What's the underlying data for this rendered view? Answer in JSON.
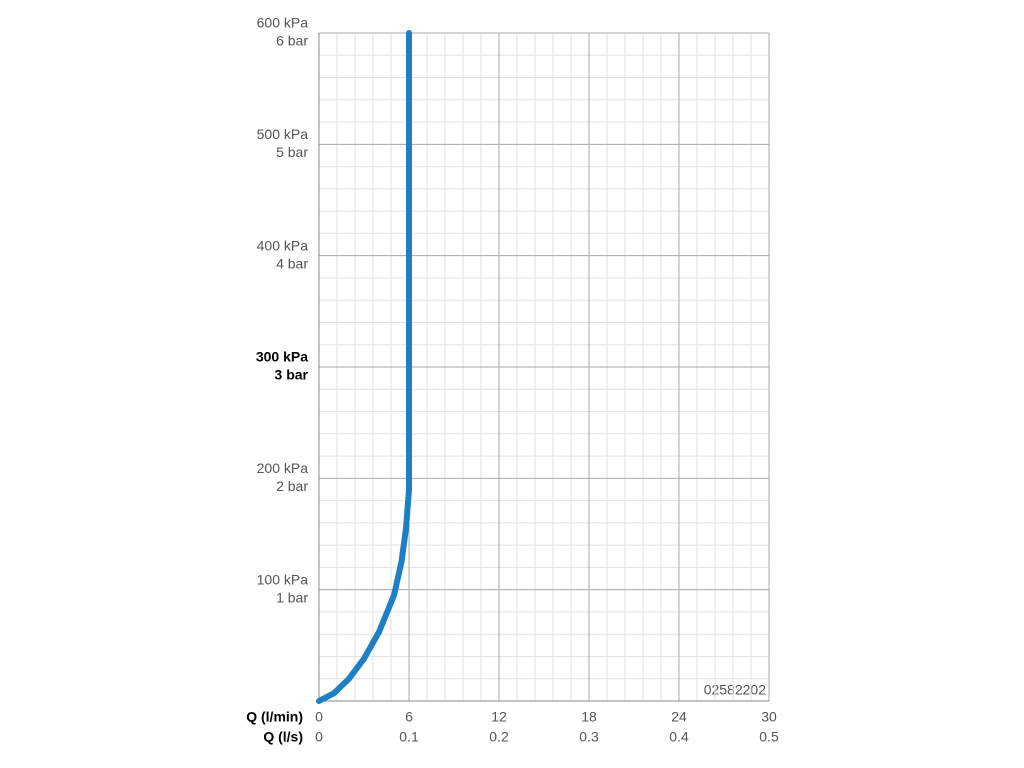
{
  "chart_data": {
    "type": "line",
    "x": [
      0,
      1,
      2,
      3,
      4,
      5,
      5.5,
      5.8,
      6,
      6
    ],
    "series": [
      {
        "name": "Q",
        "color": "#1f7fc4",
        "values": [
          0,
          7,
          20,
          38,
          62,
          95,
          125,
          155,
          190,
          600
        ]
      }
    ],
    "xlim": [
      0,
      30
    ],
    "ylim": [
      0,
      600
    ],
    "xticks": [
      0,
      6,
      12,
      18,
      24,
      30
    ],
    "xticks_ls": [
      {
        "value": 0,
        "label": "0"
      },
      {
        "value": 6,
        "label": "0.1"
      },
      {
        "value": 12,
        "label": "0.2"
      },
      {
        "value": 18,
        "label": "0.3"
      },
      {
        "value": 24,
        "label": "0.4"
      },
      {
        "value": 30,
        "label": "0.5"
      }
    ],
    "yticks": [
      {
        "value": 100,
        "label": "100 kPa"
      },
      {
        "value": 200,
        "label": "200 kPa"
      },
      {
        "value": 300,
        "label": "300 kPa"
      },
      {
        "value": 400,
        "label": "400 kPa"
      },
      {
        "value": 500,
        "label": "500 kPa"
      },
      {
        "value": 600,
        "label": "600 kPa"
      }
    ],
    "yticks_bar": [
      {
        "value": 100,
        "label": "1 bar"
      },
      {
        "value": 200,
        "label": "2 bar"
      },
      {
        "value": 300,
        "label": "3 bar"
      },
      {
        "value": 400,
        "label": "4 bar"
      },
      {
        "value": 500,
        "label": "5 bar"
      },
      {
        "value": 600,
        "label": "6 bar"
      }
    ],
    "highlight_ytick": 300,
    "xlabel": "Q (l/min)",
    "xlabel_ls": "Q (l/s)",
    "annotation": "02582202",
    "grid": true,
    "minor_grid": true
  }
}
